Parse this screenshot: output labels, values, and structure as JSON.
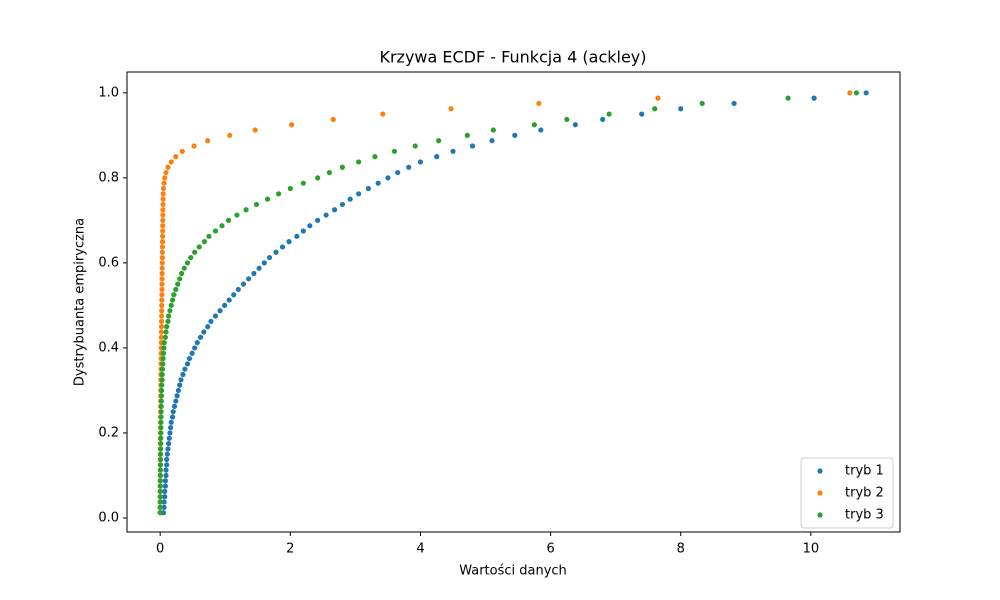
{
  "chart_data": {
    "type": "scatter",
    "title": "Krzywa ECDF - Funkcja 4 (ackley)",
    "xlabel": "Wartości danych",
    "ylabel": "Dystrybuanta empiryczna",
    "xlim": [
      -0.51,
      11.37
    ],
    "ylim": [
      -0.033,
      1.049
    ],
    "xticks": [
      0,
      2,
      4,
      6,
      8,
      10
    ],
    "yticks": [
      {
        "value": 0,
        "label": "0.0"
      },
      0.2,
      0.4,
      0.6,
      0.8,
      {
        "value": 1,
        "label": "1.0"
      }
    ],
    "legend": "lower right",
    "series": [
      {
        "name": "tryb 1",
        "color": "#1f77b4",
        "x": [
          0.05,
          0.06,
          0.06,
          0.07,
          0.07,
          0.08,
          0.08,
          0.09,
          0.09,
          0.1,
          0.1,
          0.11,
          0.12,
          0.13,
          0.14,
          0.15,
          0.16,
          0.17,
          0.19,
          0.2,
          0.22,
          0.24,
          0.26,
          0.28,
          0.3,
          0.32,
          0.35,
          0.38,
          0.42,
          0.45,
          0.49,
          0.53,
          0.57,
          0.62,
          0.67,
          0.73,
          0.78,
          0.85,
          0.92,
          0.99,
          1.06,
          1.13,
          1.2,
          1.28,
          1.36,
          1.44,
          1.52,
          1.6,
          1.68,
          1.78,
          1.88,
          1.98,
          2.1,
          2.2,
          2.3,
          2.42,
          2.55,
          2.68,
          2.8,
          2.92,
          3.05,
          3.2,
          3.35,
          3.5,
          3.65,
          3.82,
          4.0,
          4.25,
          4.5,
          4.8,
          5.1,
          5.45,
          5.85,
          6.38,
          6.8,
          7.4,
          8.0,
          8.82,
          10.05,
          10.85
        ],
        "values": [
          0.0125,
          0.025,
          0.0375,
          0.05,
          0.0625,
          0.075,
          0.0875,
          0.1,
          0.1125,
          0.125,
          0.1375,
          0.15,
          0.1625,
          0.175,
          0.1875,
          0.2,
          0.2125,
          0.225,
          0.2375,
          0.25,
          0.2625,
          0.275,
          0.2875,
          0.3,
          0.3125,
          0.325,
          0.3375,
          0.35,
          0.3625,
          0.375,
          0.3875,
          0.4,
          0.4125,
          0.425,
          0.4375,
          0.45,
          0.4625,
          0.475,
          0.4875,
          0.5,
          0.5125,
          0.525,
          0.5375,
          0.55,
          0.5625,
          0.575,
          0.5875,
          0.6,
          0.6125,
          0.625,
          0.6375,
          0.65,
          0.6625,
          0.675,
          0.6875,
          0.7,
          0.7125,
          0.725,
          0.7375,
          0.75,
          0.7625,
          0.775,
          0.7875,
          0.8,
          0.8125,
          0.825,
          0.8375,
          0.85,
          0.8625,
          0.875,
          0.8875,
          0.9,
          0.9125,
          0.925,
          0.9375,
          0.95,
          0.9625,
          0.975,
          0.9875,
          1.0
        ]
      },
      {
        "name": "tryb 2",
        "color": "#ff7f0e",
        "x": [
          0.0,
          0.0,
          0.0,
          0.0,
          0.001,
          0.001,
          0.001,
          0.002,
          0.002,
          0.002,
          0.003,
          0.003,
          0.004,
          0.004,
          0.005,
          0.005,
          0.006,
          0.006,
          0.007,
          0.007,
          0.008,
          0.008,
          0.009,
          0.009,
          0.01,
          0.01,
          0.011,
          0.012,
          0.013,
          0.014,
          0.015,
          0.016,
          0.017,
          0.018,
          0.019,
          0.02,
          0.021,
          0.022,
          0.023,
          0.024,
          0.025,
          0.026,
          0.027,
          0.028,
          0.029,
          0.03,
          0.031,
          0.032,
          0.033,
          0.034,
          0.035,
          0.036,
          0.037,
          0.038,
          0.039,
          0.04,
          0.041,
          0.042,
          0.043,
          0.044,
          0.046,
          0.05,
          0.06,
          0.07,
          0.09,
          0.12,
          0.17,
          0.24,
          0.34,
          0.52,
          0.73,
          1.07,
          1.46,
          2.02,
          2.66,
          3.42,
          4.47,
          5.82,
          7.65,
          10.6
        ],
        "values": [
          0.0125,
          0.025,
          0.0375,
          0.05,
          0.0625,
          0.075,
          0.0875,
          0.1,
          0.1125,
          0.125,
          0.1375,
          0.15,
          0.1625,
          0.175,
          0.1875,
          0.2,
          0.2125,
          0.225,
          0.2375,
          0.25,
          0.2625,
          0.275,
          0.2875,
          0.3,
          0.3125,
          0.325,
          0.3375,
          0.35,
          0.3625,
          0.375,
          0.3875,
          0.4,
          0.4125,
          0.425,
          0.4375,
          0.45,
          0.4625,
          0.475,
          0.4875,
          0.5,
          0.5125,
          0.525,
          0.5375,
          0.55,
          0.5625,
          0.575,
          0.5875,
          0.6,
          0.6125,
          0.625,
          0.6375,
          0.65,
          0.6625,
          0.675,
          0.6875,
          0.7,
          0.7125,
          0.725,
          0.7375,
          0.75,
          0.7625,
          0.775,
          0.7875,
          0.8,
          0.8125,
          0.825,
          0.8375,
          0.85,
          0.8625,
          0.875,
          0.8875,
          0.9,
          0.9125,
          0.925,
          0.9375,
          0.95,
          0.9625,
          0.975,
          0.9875,
          1.0
        ]
      },
      {
        "name": "tryb 3",
        "color": "#2ca02c",
        "x": [
          0.0,
          0.0,
          0.0,
          0.001,
          0.001,
          0.002,
          0.002,
          0.003,
          0.003,
          0.004,
          0.005,
          0.006,
          0.007,
          0.008,
          0.009,
          0.01,
          0.011,
          0.012,
          0.013,
          0.014,
          0.016,
          0.018,
          0.02,
          0.022,
          0.025,
          0.028,
          0.031,
          0.035,
          0.04,
          0.045,
          0.05,
          0.056,
          0.063,
          0.08,
          0.09,
          0.1,
          0.12,
          0.13,
          0.15,
          0.17,
          0.19,
          0.21,
          0.24,
          0.27,
          0.3,
          0.33,
          0.37,
          0.42,
          0.47,
          0.53,
          0.6,
          0.68,
          0.75,
          0.85,
          0.95,
          1.05,
          1.18,
          1.32,
          1.48,
          1.65,
          1.82,
          2.0,
          2.2,
          2.42,
          2.6,
          2.8,
          3.05,
          3.3,
          3.6,
          3.92,
          4.28,
          4.72,
          5.12,
          5.75,
          6.25,
          6.9,
          7.6,
          8.33,
          9.65,
          10.7
        ],
        "values": [
          0.0125,
          0.025,
          0.0375,
          0.05,
          0.0625,
          0.075,
          0.0875,
          0.1,
          0.1125,
          0.125,
          0.1375,
          0.15,
          0.1625,
          0.175,
          0.1875,
          0.2,
          0.2125,
          0.225,
          0.2375,
          0.25,
          0.2625,
          0.275,
          0.2875,
          0.3,
          0.3125,
          0.325,
          0.3375,
          0.35,
          0.3625,
          0.375,
          0.3875,
          0.4,
          0.4125,
          0.425,
          0.4375,
          0.45,
          0.4625,
          0.475,
          0.4875,
          0.5,
          0.5125,
          0.525,
          0.5375,
          0.55,
          0.5625,
          0.575,
          0.5875,
          0.6,
          0.6125,
          0.625,
          0.6375,
          0.65,
          0.6625,
          0.675,
          0.6875,
          0.7,
          0.7125,
          0.725,
          0.7375,
          0.75,
          0.7625,
          0.775,
          0.7875,
          0.8,
          0.8125,
          0.825,
          0.8375,
          0.85,
          0.8625,
          0.875,
          0.8875,
          0.9,
          0.9125,
          0.925,
          0.9375,
          0.95,
          0.9625,
          0.975,
          0.9875,
          1.0
        ]
      }
    ]
  }
}
